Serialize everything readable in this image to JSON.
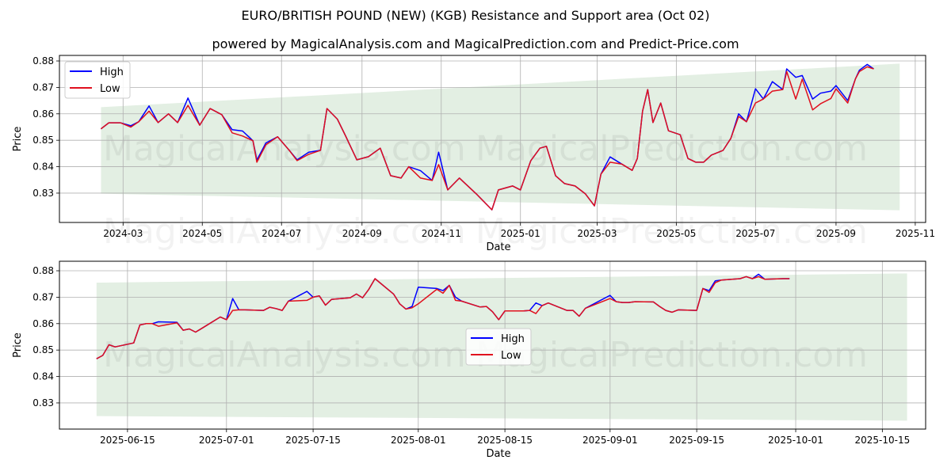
{
  "title": "EURO/BRITISH POUND (NEW) (KGB) Resistance and Support area (Oct 02)",
  "subtitle": "powered by MagicalAnalysis.com and MagicalPrediction.com and Predict-Price.com",
  "watermarks": [
    "MagicalAnalysis.com",
    "MagicalPrediction.com"
  ],
  "colors": {
    "high": "#0000ff",
    "low": "#e0101e",
    "band": "#e3efe3",
    "grid": "#b0b0b0"
  },
  "chart_data": [
    {
      "type": "line",
      "xlabel": "Date",
      "ylabel": "Price",
      "xlim": [
        "2024-01-12",
        "2025-11-09"
      ],
      "ylim": [
        0.8189,
        0.8821
      ],
      "grid": true,
      "legend": {
        "placement": "top-left",
        "entries": [
          "High",
          "Low"
        ]
      },
      "xticks": [
        {
          "date": "2024-03-01",
          "label": "2024-03"
        },
        {
          "date": "2024-05-01",
          "label": "2024-05"
        },
        {
          "date": "2024-07-01",
          "label": "2024-07"
        },
        {
          "date": "2024-09-01",
          "label": "2024-09"
        },
        {
          "date": "2024-11-01",
          "label": "2024-11"
        },
        {
          "date": "2025-01-01",
          "label": "2025-01"
        },
        {
          "date": "2025-03-01",
          "label": "2025-03"
        },
        {
          "date": "2025-05-01",
          "label": "2025-05"
        },
        {
          "date": "2025-07-01",
          "label": "2025-07"
        },
        {
          "date": "2025-09-01",
          "label": "2025-09"
        },
        {
          "date": "2025-11-01",
          "label": "2025-11"
        }
      ],
      "yticks": [
        0.83,
        0.84,
        0.85,
        0.86,
        0.87,
        0.88
      ],
      "ytick_labels": [
        "0.83",
        "0.84",
        "0.85",
        "0.86",
        "0.87",
        "0.88"
      ],
      "band": {
        "start": "2024-02-13",
        "end": "2025-10-20",
        "upper": [
          0.8625,
          0.879
        ],
        "lower": [
          0.8298,
          0.8235
        ]
      },
      "points": [
        [
          "2024-02-13",
          0.8543,
          0.8543
        ],
        [
          "2024-02-19",
          0.8566,
          0.8566
        ],
        [
          "2024-02-28",
          0.8566,
          0.8566
        ],
        [
          "2024-03-07",
          0.8555,
          0.855
        ],
        [
          "2024-03-13",
          0.857,
          0.857
        ],
        [
          "2024-03-21",
          0.863,
          0.861
        ],
        [
          "2024-03-28",
          0.8567,
          0.8567
        ],
        [
          "2024-04-05",
          0.86,
          0.86
        ],
        [
          "2024-04-12",
          0.8567,
          0.8567
        ],
        [
          "2024-04-20",
          0.866,
          0.8632
        ],
        [
          "2024-04-29",
          0.8557,
          0.8557
        ],
        [
          "2024-05-07",
          0.862,
          0.862
        ],
        [
          "2024-05-16",
          0.8597,
          0.8597
        ],
        [
          "2024-05-24",
          0.854,
          0.8528
        ],
        [
          "2024-06-01",
          0.8535,
          0.8516
        ],
        [
          "2024-06-09",
          0.8498,
          0.8498
        ],
        [
          "2024-06-12",
          0.8425,
          0.8417
        ],
        [
          "2024-06-19",
          0.849,
          0.8483
        ],
        [
          "2024-06-28",
          0.8513,
          0.8513
        ],
        [
          "2024-07-07",
          0.8462,
          0.8462
        ],
        [
          "2024-07-13",
          0.8426,
          0.8423
        ],
        [
          "2024-07-22",
          0.8455,
          0.8447
        ],
        [
          "2024-07-31",
          0.8462,
          0.8462
        ],
        [
          "2024-08-05",
          0.862,
          0.862
        ],
        [
          "2024-08-13",
          0.858,
          0.858
        ],
        [
          "2024-08-19",
          0.852,
          0.852
        ],
        [
          "2024-08-28",
          0.8426,
          0.8426
        ],
        [
          "2024-09-06",
          0.8438,
          0.8438
        ],
        [
          "2024-09-15",
          0.847,
          0.847
        ],
        [
          "2024-09-23",
          0.8366,
          0.8366
        ],
        [
          "2024-10-01",
          0.8357,
          0.8357
        ],
        [
          "2024-10-07",
          0.84,
          0.84
        ],
        [
          "2024-10-16",
          0.8385,
          0.8357
        ],
        [
          "2024-10-25",
          0.8348,
          0.8348
        ],
        [
          "2024-10-30",
          0.8455,
          0.8408
        ],
        [
          "2024-11-06",
          0.8312,
          0.8312
        ],
        [
          "2024-11-15",
          0.8357,
          0.8357
        ],
        [
          "2024-11-28",
          0.8297,
          0.8297
        ],
        [
          "2024-12-10",
          0.8237,
          0.8237
        ],
        [
          "2024-12-15",
          0.8312,
          0.8312
        ],
        [
          "2024-12-26",
          0.8327,
          0.8327
        ],
        [
          "2025-01-01",
          0.8312,
          0.8312
        ],
        [
          "2025-01-09",
          0.8423,
          0.8423
        ],
        [
          "2025-01-16",
          0.847,
          0.847
        ],
        [
          "2025-01-21",
          0.8477,
          0.8477
        ],
        [
          "2025-01-28",
          0.8366,
          0.8366
        ],
        [
          "2025-02-04",
          0.8336,
          0.8336
        ],
        [
          "2025-02-12",
          0.8327,
          0.8327
        ],
        [
          "2025-02-20",
          0.8297,
          0.8297
        ],
        [
          "2025-02-27",
          0.8252,
          0.8252
        ],
        [
          "2025-03-04",
          0.8372,
          0.8372
        ],
        [
          "2025-03-11",
          0.8437,
          0.8417
        ],
        [
          "2025-03-20",
          0.841,
          0.841
        ],
        [
          "2025-03-28",
          0.8386,
          0.8386
        ],
        [
          "2025-04-01",
          0.8431,
          0.8431
        ],
        [
          "2025-04-05",
          0.861,
          0.861
        ],
        [
          "2025-04-09",
          0.8692,
          0.8692
        ],
        [
          "2025-04-13",
          0.8567,
          0.8567
        ],
        [
          "2025-04-19",
          0.8641,
          0.8641
        ],
        [
          "2025-04-25",
          0.8536,
          0.8536
        ],
        [
          "2025-05-04",
          0.8521,
          0.8521
        ],
        [
          "2025-05-10",
          0.8431,
          0.8431
        ],
        [
          "2025-05-16",
          0.8417,
          0.8417
        ],
        [
          "2025-05-22",
          0.8417,
          0.8417
        ],
        [
          "2025-05-28",
          0.8444,
          0.8444
        ],
        [
          "2025-06-06",
          0.8462,
          0.8462
        ],
        [
          "2025-06-12",
          0.8507,
          0.8507
        ],
        [
          "2025-06-18",
          0.86,
          0.859
        ],
        [
          "2025-06-24",
          0.857,
          0.857
        ],
        [
          "2025-07-01",
          0.8695,
          0.8641
        ],
        [
          "2025-07-07",
          0.8656,
          0.8656
        ],
        [
          "2025-07-14",
          0.8722,
          0.8686
        ],
        [
          "2025-07-22",
          0.8692,
          0.8692
        ],
        [
          "2025-07-25",
          0.877,
          0.876
        ],
        [
          "2025-08-01",
          0.8738,
          0.8656
        ],
        [
          "2025-08-06",
          0.8745,
          0.8731
        ],
        [
          "2025-08-14",
          0.8656,
          0.8615
        ],
        [
          "2025-08-20",
          0.8678,
          0.8638
        ],
        [
          "2025-08-28",
          0.8686,
          0.8658
        ],
        [
          "2025-09-01",
          0.8707,
          0.8695
        ],
        [
          "2025-09-10",
          0.865,
          0.8641
        ],
        [
          "2025-09-16",
          0.8733,
          0.8733
        ],
        [
          "2025-09-19",
          0.8765,
          0.876
        ],
        [
          "2025-09-25",
          0.8787,
          0.8778
        ],
        [
          "2025-09-30",
          0.877,
          0.877
        ]
      ]
    },
    {
      "type": "line",
      "xlabel": "Date",
      "ylabel": "Price",
      "xlim": [
        "2025-06-04",
        "2025-10-22"
      ],
      "ylim": [
        0.8201,
        0.8836
      ],
      "grid": true,
      "legend": {
        "placement": "center",
        "entries": [
          "High",
          "Low"
        ]
      },
      "xticks": [
        {
          "date": "2025-06-15",
          "label": "2025-06-15"
        },
        {
          "date": "2025-07-01",
          "label": "2025-07-01"
        },
        {
          "date": "2025-07-15",
          "label": "2025-07-15"
        },
        {
          "date": "2025-08-01",
          "label": "2025-08-01"
        },
        {
          "date": "2025-08-15",
          "label": "2025-08-15"
        },
        {
          "date": "2025-09-01",
          "label": "2025-09-01"
        },
        {
          "date": "2025-09-15",
          "label": "2025-09-15"
        },
        {
          "date": "2025-10-01",
          "label": "2025-10-01"
        },
        {
          "date": "2025-10-15",
          "label": "2025-10-15"
        }
      ],
      "yticks": [
        0.83,
        0.84,
        0.85,
        0.86,
        0.87,
        0.88
      ],
      "ytick_labels": [
        "0.83",
        "0.84",
        "0.85",
        "0.86",
        "0.87",
        "0.88"
      ],
      "band": {
        "start": "2025-06-10",
        "end": "2025-10-19",
        "upper": [
          0.8755,
          0.879
        ],
        "lower": [
          0.825,
          0.8233
        ]
      },
      "points": [
        [
          "2025-06-10",
          0.8467,
          0.8467
        ],
        [
          "2025-06-11",
          0.848,
          0.848
        ],
        [
          "2025-06-12",
          0.852,
          0.852
        ],
        [
          "2025-06-13",
          0.8512,
          0.8512
        ],
        [
          "2025-06-16",
          0.8527,
          0.8527
        ],
        [
          "2025-06-17",
          0.8595,
          0.8595
        ],
        [
          "2025-06-18",
          0.86,
          0.86
        ],
        [
          "2025-06-19",
          0.86,
          0.86
        ],
        [
          "2025-06-20",
          0.8607,
          0.859
        ],
        [
          "2025-06-23",
          0.8605,
          0.8603
        ],
        [
          "2025-06-24",
          0.8575,
          0.8575
        ],
        [
          "2025-06-25",
          0.858,
          0.858
        ],
        [
          "2025-06-26",
          0.8568,
          0.8568
        ],
        [
          "2025-06-27",
          0.8582,
          0.8582
        ],
        [
          "2025-06-30",
          0.8625,
          0.8625
        ],
        [
          "2025-07-01",
          0.8615,
          0.8615
        ],
        [
          "2025-07-02",
          0.8695,
          0.865
        ],
        [
          "2025-07-03",
          0.8652,
          0.8652
        ],
        [
          "2025-07-04",
          0.8652,
          0.8652
        ],
        [
          "2025-07-07",
          0.865,
          0.865
        ],
        [
          "2025-07-08",
          0.8662,
          0.8662
        ],
        [
          "2025-07-09",
          0.8657,
          0.8657
        ],
        [
          "2025-07-10",
          0.865,
          0.865
        ],
        [
          "2025-07-11",
          0.8685,
          0.8685
        ],
        [
          "2025-07-14",
          0.8722,
          0.8688
        ],
        [
          "2025-07-15",
          0.87,
          0.87
        ],
        [
          "2025-07-16",
          0.8705,
          0.8705
        ],
        [
          "2025-07-17",
          0.867,
          0.867
        ],
        [
          "2025-07-18",
          0.8692,
          0.8692
        ],
        [
          "2025-07-21",
          0.8698,
          0.8698
        ],
        [
          "2025-07-22",
          0.8712,
          0.8712
        ],
        [
          "2025-07-23",
          0.8698,
          0.8698
        ],
        [
          "2025-07-24",
          0.873,
          0.873
        ],
        [
          "2025-07-25",
          0.877,
          0.877
        ],
        [
          "2025-07-28",
          0.8712,
          0.8712
        ],
        [
          "2025-07-29",
          0.8675,
          0.8675
        ],
        [
          "2025-07-30",
          0.8655,
          0.8655
        ],
        [
          "2025-07-31",
          0.8665,
          0.866
        ],
        [
          "2025-08-01",
          0.8738,
          0.8675
        ],
        [
          "2025-08-04",
          0.8733,
          0.873
        ],
        [
          "2025-08-05",
          0.8725,
          0.8715
        ],
        [
          "2025-08-06",
          0.8745,
          0.8745
        ],
        [
          "2025-08-07",
          0.87,
          0.8688
        ],
        [
          "2025-08-08",
          0.8685,
          0.8685
        ],
        [
          "2025-08-11",
          0.8663,
          0.8663
        ],
        [
          "2025-08-12",
          0.8665,
          0.8665
        ],
        [
          "2025-08-13",
          0.8645,
          0.8645
        ],
        [
          "2025-08-14",
          0.8615,
          0.8615
        ],
        [
          "2025-08-15",
          0.8648,
          0.8648
        ],
        [
          "2025-08-18",
          0.8648,
          0.8648
        ],
        [
          "2025-08-19",
          0.865,
          0.865
        ],
        [
          "2025-08-20",
          0.8678,
          0.8638
        ],
        [
          "2025-08-21",
          0.8668,
          0.8668
        ],
        [
          "2025-08-22",
          0.8678,
          0.8678
        ],
        [
          "2025-08-25",
          0.865,
          0.865
        ],
        [
          "2025-08-26",
          0.865,
          0.865
        ],
        [
          "2025-08-27",
          0.8628,
          0.8628
        ],
        [
          "2025-08-28",
          0.8658,
          0.8658
        ],
        [
          "2025-09-01",
          0.8707,
          0.8695
        ],
        [
          "2025-09-02",
          0.8683,
          0.8683
        ],
        [
          "2025-09-03",
          0.868,
          0.868
        ],
        [
          "2025-09-04",
          0.868,
          0.868
        ],
        [
          "2025-09-05",
          0.8683,
          0.8683
        ],
        [
          "2025-09-08",
          0.8682,
          0.8682
        ],
        [
          "2025-09-09",
          0.8665,
          0.8665
        ],
        [
          "2025-09-10",
          0.865,
          0.865
        ],
        [
          "2025-09-11",
          0.8643,
          0.8643
        ],
        [
          "2025-09-12",
          0.8652,
          0.8652
        ],
        [
          "2025-09-15",
          0.865,
          0.865
        ],
        [
          "2025-09-16",
          0.8733,
          0.8733
        ],
        [
          "2025-09-17",
          0.8725,
          0.8718
        ],
        [
          "2025-09-18",
          0.8762,
          0.8755
        ],
        [
          "2025-09-19",
          0.8765,
          0.8765
        ],
        [
          "2025-09-22",
          0.877,
          0.877
        ],
        [
          "2025-09-23",
          0.8778,
          0.8778
        ],
        [
          "2025-09-24",
          0.877,
          0.877
        ],
        [
          "2025-09-25",
          0.8787,
          0.8778
        ],
        [
          "2025-09-26",
          0.8768,
          0.8768
        ],
        [
          "2025-09-29",
          0.877,
          0.877
        ],
        [
          "2025-09-30",
          0.877,
          0.877
        ]
      ]
    }
  ]
}
